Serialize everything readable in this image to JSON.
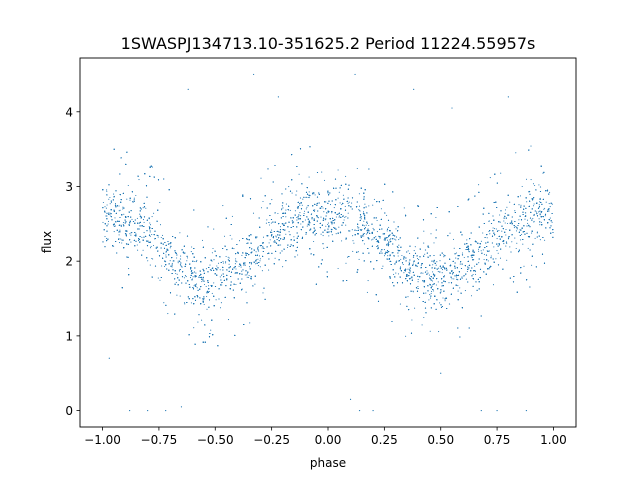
{
  "chart_data": {
    "type": "scatter",
    "title": "1SWASPJ134713.10-351625.2 Period 11224.55957s",
    "xlabel": "phase",
    "ylabel": "flux",
    "xlim": [
      -1.1,
      1.1
    ],
    "ylim": [
      -0.22,
      4.72
    ],
    "xticks": [
      -1.0,
      -0.75,
      -0.5,
      -0.25,
      0.0,
      0.25,
      0.5,
      0.75,
      1.0
    ],
    "xtick_labels": [
      "−1.00",
      "−0.75",
      "−0.50",
      "−0.25",
      "0.00",
      "0.25",
      "0.50",
      "0.75",
      "1.00"
    ],
    "yticks": [
      0,
      1,
      2,
      3,
      4
    ],
    "ytick_labels": [
      "0",
      "1",
      "2",
      "3",
      "4"
    ],
    "grid": false,
    "legend": "none",
    "series": [
      {
        "marker_color": "#1f77b4",
        "description_of_density": "phase-folded light curve, densest band",
        "points": [
          [
            -1.0,
            2.6
          ],
          [
            -0.95,
            2.62
          ],
          [
            -0.9,
            2.55
          ],
          [
            -0.85,
            2.5
          ],
          [
            -0.8,
            2.4
          ],
          [
            -0.75,
            2.25
          ],
          [
            -0.7,
            2.05
          ],
          [
            -0.65,
            1.9
          ],
          [
            -0.6,
            1.8
          ],
          [
            -0.55,
            1.75
          ],
          [
            -0.5,
            1.78
          ],
          [
            -0.45,
            1.85
          ],
          [
            -0.4,
            1.95
          ],
          [
            -0.35,
            2.05
          ],
          [
            -0.3,
            2.2
          ],
          [
            -0.25,
            2.35
          ],
          [
            -0.2,
            2.45
          ],
          [
            -0.15,
            2.55
          ],
          [
            -0.1,
            2.6
          ],
          [
            -0.05,
            2.62
          ],
          [
            0.0,
            2.6
          ],
          [
            0.05,
            2.62
          ],
          [
            0.1,
            2.55
          ],
          [
            0.15,
            2.5
          ],
          [
            0.2,
            2.4
          ],
          [
            0.25,
            2.25
          ],
          [
            0.3,
            2.05
          ],
          [
            0.35,
            1.9
          ],
          [
            0.4,
            1.8
          ],
          [
            0.45,
            1.75
          ],
          [
            0.5,
            1.78
          ],
          [
            0.55,
            1.85
          ],
          [
            0.6,
            1.95
          ],
          [
            0.65,
            2.05
          ],
          [
            0.7,
            2.2
          ],
          [
            0.75,
            2.35
          ],
          [
            0.8,
            2.45
          ],
          [
            0.85,
            2.55
          ],
          [
            0.9,
            2.6
          ],
          [
            0.95,
            2.62
          ],
          [
            1.0,
            2.6
          ]
        ],
        "outliers": [
          [
            -0.88,
            0.0
          ],
          [
            -0.8,
            0.0
          ],
          [
            -0.72,
            0.0
          ],
          [
            0.14,
            0.0
          ],
          [
            0.2,
            0.0
          ],
          [
            0.68,
            0.0
          ],
          [
            0.75,
            0.0
          ],
          [
            0.88,
            0.0
          ],
          [
            -0.62,
            4.3
          ],
          [
            -0.33,
            4.5
          ],
          [
            0.12,
            4.5
          ],
          [
            0.38,
            4.3
          ],
          [
            0.8,
            4.2
          ],
          [
            -0.22,
            4.2
          ],
          [
            0.55,
            4.05
          ],
          [
            -0.65,
            0.05
          ],
          [
            0.1,
            0.15
          ],
          [
            -0.97,
            0.7
          ],
          [
            0.5,
            0.5
          ]
        ]
      }
    ]
  }
}
